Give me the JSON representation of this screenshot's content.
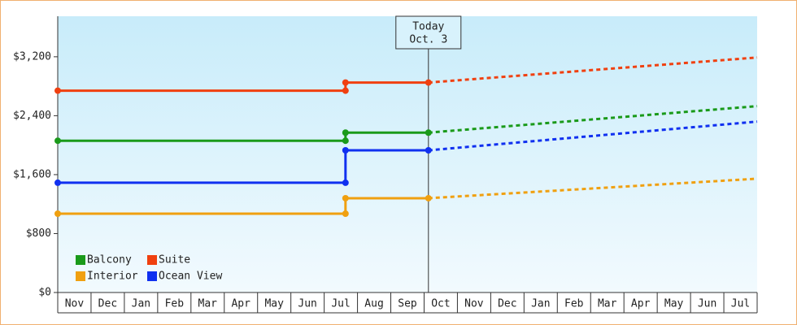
{
  "chart_data": {
    "type": "line",
    "categories": [
      "Nov",
      "Dec",
      "Jan",
      "Feb",
      "Mar",
      "Apr",
      "May",
      "Jun",
      "Jul",
      "Aug",
      "Sep",
      "Oct",
      "Nov",
      "Dec",
      "Jan",
      "Feb",
      "Mar",
      "Apr",
      "May",
      "Jun",
      "Jul"
    ],
    "x": [
      0,
      8.64,
      8.64,
      11.13,
      21
    ],
    "xlim": [
      0,
      21
    ],
    "ylim": [
      0,
      3750
    ],
    "yticks": [
      {
        "value": 0,
        "label": "$0"
      },
      {
        "value": 800,
        "label": "$800"
      },
      {
        "value": 1600,
        "label": "$1,600"
      },
      {
        "value": 2400,
        "label": "$2,400"
      },
      {
        "value": 3200,
        "label": "$3,200"
      }
    ],
    "annotation": {
      "x": 11.13,
      "lines": [
        "Today",
        "Oct. 3"
      ]
    },
    "series": [
      {
        "name": "Balcony",
        "color": "#1a9a1a",
        "values": [
          2060,
          2060,
          2170,
          2170,
          2530
        ]
      },
      {
        "name": "Suite",
        "color": "#f04010",
        "values": [
          2740,
          2740,
          2850,
          2850,
          3190
        ]
      },
      {
        "name": "Interior",
        "color": "#f0a010",
        "values": [
          1070,
          1070,
          1280,
          1280,
          1545
        ]
      },
      {
        "name": "Ocean View",
        "color": "#1030f0",
        "values": [
          1490,
          1490,
          1930,
          1930,
          2320
        ]
      }
    ]
  }
}
